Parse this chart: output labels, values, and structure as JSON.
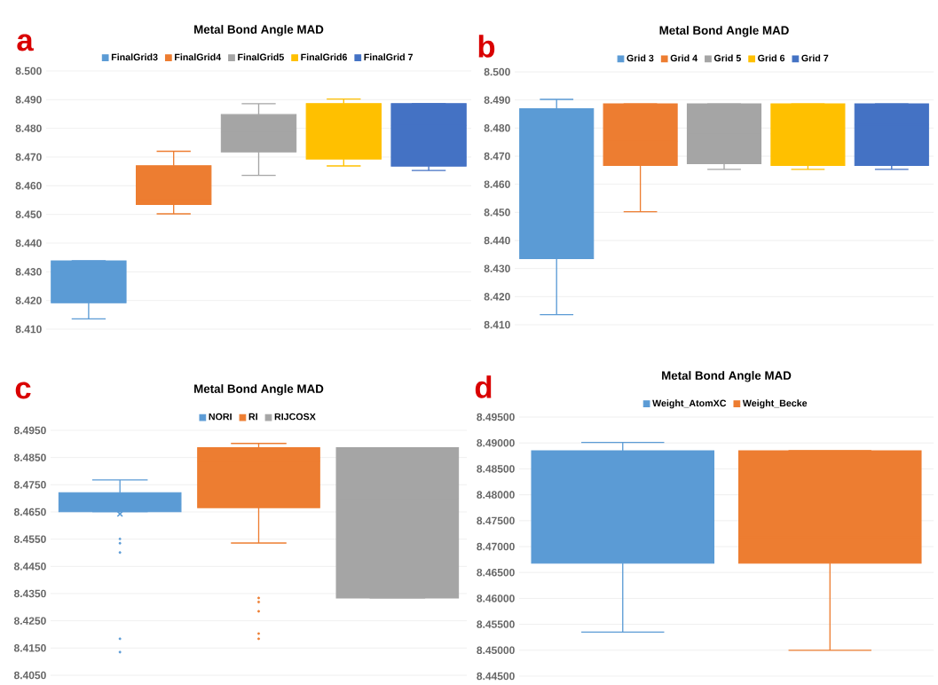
{
  "chart_data": [
    {
      "type": "box",
      "title": "Metal Bond Angle MAD",
      "annotations": [
        "a"
      ],
      "categories": [
        null
      ],
      "grid": "y",
      "legend": "top",
      "tick_labels": "y",
      "ylim": [
        8.41,
        8.5
      ],
      "yticks": [
        {
          "value": 8.41,
          "label": "8.410"
        },
        {
          "value": 8.42,
          "label": "8.420"
        },
        {
          "value": 8.43,
          "label": "8.430"
        },
        {
          "value": 8.44,
          "label": "8.440"
        },
        {
          "value": 8.45,
          "label": "8.450"
        },
        {
          "value": 8.46,
          "label": "8.460"
        },
        {
          "value": 8.47,
          "label": "8.470"
        },
        {
          "value": 8.48,
          "label": "8.480"
        },
        {
          "value": 8.49,
          "label": "8.490"
        },
        {
          "value": 8.5,
          "label": "8.500"
        }
      ],
      "series": [
        {
          "name": "FinalGrid3",
          "color": "#5b9bd5",
          "boxes": [
            {
              "low": 8.4136,
              "q1": 8.4192,
              "median": 8.432,
              "q3": 8.4338,
              "high": 8.4338
            }
          ]
        },
        {
          "name": "FinalGrid4",
          "color": "#ed7d31",
          "boxes": [
            {
              "low": 8.4502,
              "q1": 8.4535,
              "median": 8.4552,
              "q3": 8.467,
              "high": 8.472
            }
          ]
        },
        {
          "name": "FinalGrid5",
          "color": "#a5a5a5",
          "boxes": [
            {
              "low": 8.4636,
              "q1": 8.4718,
              "median": 8.4787,
              "q3": 8.4848,
              "high": 8.4886
            }
          ]
        },
        {
          "name": "FinalGrid6",
          "color": "#ffc000",
          "boxes": [
            {
              "low": 8.4669,
              "q1": 8.4693,
              "median": 8.479,
              "q3": 8.4886,
              "high": 8.4902
            }
          ]
        },
        {
          "name": "FinalGrid 7",
          "color": "#4472c4",
          "boxes": [
            {
              "low": 8.4653,
              "q1": 8.4668,
              "median": 8.481,
              "q3": 8.4886,
              "high": 8.4886
            }
          ]
        }
      ]
    },
    {
      "type": "box",
      "title": "Metal Bond Angle MAD",
      "annotations": [
        "b"
      ],
      "categories": [
        null
      ],
      "grid": "y",
      "legend": "top",
      "tick_labels": "y",
      "ylim": [
        8.41,
        8.5
      ],
      "yticks": [
        {
          "value": 8.41,
          "label": "8.410"
        },
        {
          "value": 8.42,
          "label": "8.420"
        },
        {
          "value": 8.43,
          "label": "8.430"
        },
        {
          "value": 8.44,
          "label": "8.440"
        },
        {
          "value": 8.45,
          "label": "8.450"
        },
        {
          "value": 8.46,
          "label": "8.460"
        },
        {
          "value": 8.47,
          "label": "8.470"
        },
        {
          "value": 8.48,
          "label": "8.480"
        },
        {
          "value": 8.49,
          "label": "8.490"
        },
        {
          "value": 8.5,
          "label": "8.500"
        }
      ],
      "series": [
        {
          "name": "Grid 3",
          "color": "#5b9bd5",
          "boxes": [
            {
              "low": 8.4136,
              "q1": 8.4335,
              "median": 8.4702,
              "q3": 8.4869,
              "high": 8.4902
            }
          ]
        },
        {
          "name": "Grid 4",
          "color": "#ed7d31",
          "boxes": [
            {
              "low": 8.4502,
              "q1": 8.4667,
              "median": 8.4753,
              "q3": 8.4886,
              "high": 8.4886
            }
          ]
        },
        {
          "name": "Grid 5",
          "color": "#a5a5a5",
          "boxes": [
            {
              "low": 8.4653,
              "q1": 8.4673,
              "median": 8.4778,
              "q3": 8.4886,
              "high": 8.4886
            }
          ]
        },
        {
          "name": "Grid 6",
          "color": "#ffc000",
          "boxes": [
            {
              "low": 8.4653,
              "q1": 8.4667,
              "median": 8.478,
              "q3": 8.4886,
              "high": 8.4886
            }
          ]
        },
        {
          "name": "Grid 7",
          "color": "#4472c4",
          "boxes": [
            {
              "low": 8.4653,
              "q1": 8.4667,
              "median": 8.4812,
              "q3": 8.4886,
              "high": 8.4886
            }
          ]
        }
      ]
    },
    {
      "type": "box",
      "title": "Metal Bond Angle MAD",
      "annotations": [
        "c"
      ],
      "categories": [
        null
      ],
      "grid": "y",
      "legend": "top",
      "tick_labels": "y",
      "ylim": [
        8.405,
        8.495
      ],
      "yticks": [
        {
          "value": 8.405,
          "label": "8.4050"
        },
        {
          "value": 8.415,
          "label": "8.4150"
        },
        {
          "value": 8.425,
          "label": "8.4250"
        },
        {
          "value": 8.435,
          "label": "8.4350"
        },
        {
          "value": 8.445,
          "label": "8.4450"
        },
        {
          "value": 8.455,
          "label": "8.4550"
        },
        {
          "value": 8.465,
          "label": "8.4650"
        },
        {
          "value": 8.475,
          "label": "8.4750"
        },
        {
          "value": 8.485,
          "label": "8.4850"
        },
        {
          "value": 8.495,
          "label": "8.4950"
        }
      ],
      "series": [
        {
          "name": "NORI",
          "color": "#5b9bd5",
          "boxes": [
            {
              "low": 8.4651,
              "q1": 8.4651,
              "median": 8.4678,
              "q3": 8.4721,
              "high": 8.4768,
              "mean": 8.4643,
              "outliers": [
                8.4551,
                8.4535,
                8.4501,
                8.4184,
                8.4135
              ]
            }
          ]
        },
        {
          "name": "RI",
          "color": "#ed7d31",
          "boxes": [
            {
              "low": 8.4536,
              "q1": 8.4666,
              "median": 8.4836,
              "q3": 8.4886,
              "high": 8.4902,
              "outliers": [
                8.4334,
                8.4319,
                8.4285,
                8.4203,
                8.4184
              ]
            }
          ]
        },
        {
          "name": "RIJCOSX",
          "color": "#a5a5a5",
          "boxes": [
            {
              "low": 8.4334,
              "q1": 8.4334,
              "median": 8.47,
              "q3": 8.4886,
              "high": 8.4886
            }
          ]
        }
      ]
    },
    {
      "type": "box",
      "title": "Metal Bond Angle MAD",
      "annotations": [
        "d"
      ],
      "categories": [
        null
      ],
      "grid": "y",
      "legend": "top",
      "tick_labels": "y",
      "ylim": [
        8.445,
        8.495
      ],
      "yticks": [
        {
          "value": 8.445,
          "label": "8.44500"
        },
        {
          "value": 8.45,
          "label": "8.45000"
        },
        {
          "value": 8.455,
          "label": "8.45500"
        },
        {
          "value": 8.46,
          "label": "8.46000"
        },
        {
          "value": 8.465,
          "label": "8.46500"
        },
        {
          "value": 8.47,
          "label": "8.47000"
        },
        {
          "value": 8.475,
          "label": "8.47500"
        },
        {
          "value": 8.48,
          "label": "8.48000"
        },
        {
          "value": 8.485,
          "label": "8.48500"
        },
        {
          "value": 8.49,
          "label": "8.49000"
        },
        {
          "value": 8.495,
          "label": "8.49500"
        }
      ],
      "series": [
        {
          "name": "Weight_AtomXC",
          "color": "#5b9bd5",
          "boxes": [
            {
              "low": 8.4535,
              "q1": 8.4668,
              "median": 8.4735,
              "q3": 8.4885,
              "high": 8.4901
            }
          ]
        },
        {
          "name": "Weight_Becke",
          "color": "#ed7d31",
          "boxes": [
            {
              "low": 8.45,
              "q1": 8.4668,
              "median": 8.4718,
              "q3": 8.4885,
              "high": 8.4885
            }
          ]
        }
      ]
    }
  ]
}
